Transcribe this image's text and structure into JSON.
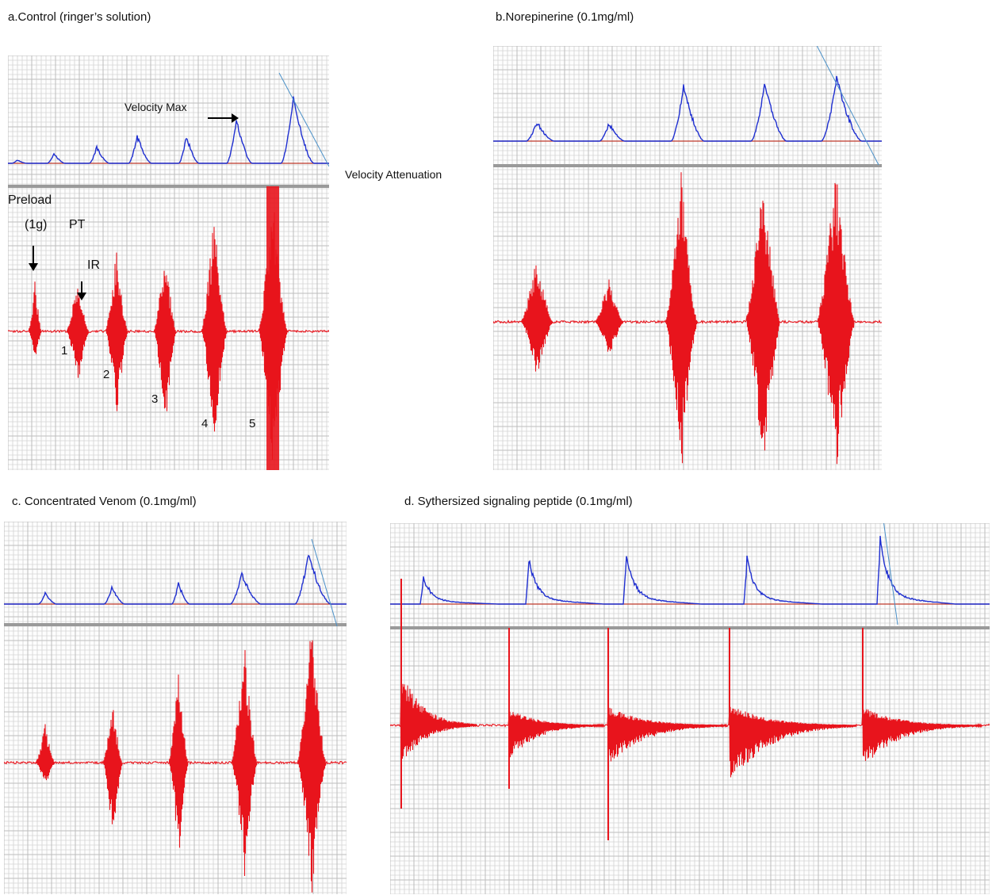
{
  "figure": {
    "panels": [
      {
        "id": "a",
        "title": "a.Control (ringer’s solution)"
      },
      {
        "id": "b",
        "title": "b.Norepinerine (0.1mg/ml)"
      },
      {
        "id": "c",
        "title": "c. Concentrated Venom (0.1mg/ml)"
      },
      {
        "id": "d",
        "title": "d. Sythersized signaling peptide (0.1mg/ml)"
      }
    ],
    "annotations": {
      "velocity_max": "Velocity Max",
      "velocity_attenuation": "Velocity Attenuation",
      "preload": "Preload",
      "preload_weight": "(1g)",
      "pt": "PT",
      "ir": "IR",
      "beat_numbers": [
        "1",
        "2",
        "3",
        "4",
        "5"
      ]
    },
    "colors": {
      "velocity_trace": "#1f2fd0",
      "force_trace": "#e8141c",
      "baseline": "#c0392b",
      "grid": "#d4d4d4",
      "divider": "#9a9a9a",
      "slope_line": "#4a90c8"
    }
  }
}
